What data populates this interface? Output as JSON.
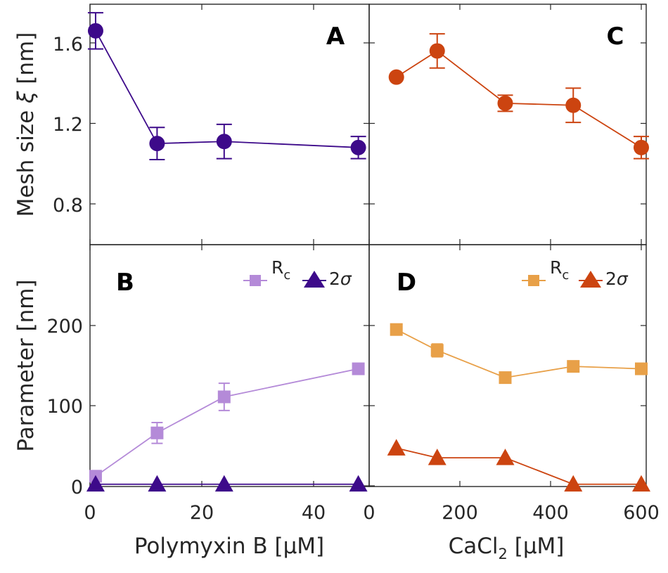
{
  "chart_data": [
    {
      "panel": "A",
      "type": "line",
      "panel_label": "A",
      "xlabel": "",
      "ylabel": "Mesh size ξ [nm]",
      "ylabel_text": "Mesh size ",
      "ylabel_symbol": "ξ",
      "ylabel_unit": " [nm]",
      "xlim": [
        0,
        50
      ],
      "ylim": [
        0.6,
        1.8
      ],
      "yticks": [
        0.8,
        1.2,
        1.6
      ],
      "ytick_labels": [
        "0.8",
        "1.2",
        "1.6"
      ],
      "series": [
        {
          "name": "Mesh size",
          "color": "#3d0a8a",
          "marker": "circle",
          "x": [
            1,
            12,
            24,
            48
          ],
          "y": [
            1.66,
            1.1,
            1.11,
            1.08
          ],
          "err": [
            0.09,
            0.08,
            0.085,
            0.055
          ]
        }
      ]
    },
    {
      "panel": "C",
      "type": "line",
      "panel_label": "C",
      "xlabel": "",
      "ylabel": "",
      "xlim": [
        0,
        610
      ],
      "ylim": [
        0.6,
        1.8
      ],
      "series": [
        {
          "name": "Mesh size",
          "color": "#cc4410",
          "marker": "circle",
          "x": [
            60,
            150,
            300,
            450,
            600
          ],
          "y": [
            1.43,
            1.56,
            1.3,
            1.29,
            1.08
          ],
          "err": [
            0,
            0.085,
            0.04,
            0.085,
            0.055
          ]
        }
      ]
    },
    {
      "panel": "B",
      "type": "line",
      "panel_label": "B",
      "xlabel": "Polymyxin B [µM]",
      "ylabel": "Parameter [nm]",
      "xlim": [
        0,
        50
      ],
      "ylim": [
        0,
        300
      ],
      "xticks": [
        0,
        20,
        40
      ],
      "xtick_labels": [
        "0",
        "20",
        "40"
      ],
      "yticks": [
        0,
        100,
        200
      ],
      "ytick_labels": [
        "0",
        "100",
        "200"
      ],
      "legend": {
        "position": "top-right",
        "entries": [
          "R",
          "2"
        ],
        "sub": "c",
        "sym": "σ"
      },
      "series": [
        {
          "name": "Rc",
          "color": "#b48ad8",
          "marker": "square",
          "x": [
            1,
            12,
            24,
            48
          ],
          "y": [
            12,
            66,
            111,
            146
          ],
          "err": [
            5,
            13,
            17,
            4
          ]
        },
        {
          "name": "2σ",
          "color": "#3d0a8a",
          "marker": "triangle",
          "x": [
            1,
            12,
            24,
            48
          ],
          "y": [
            2,
            2,
            2,
            2
          ],
          "err": [
            0,
            0,
            0,
            0
          ]
        }
      ]
    },
    {
      "panel": "D",
      "type": "line",
      "panel_label": "D",
      "xlabel": "CaCl₂ [µM]",
      "xlabel_main": "CaCl",
      "xlabel_sub": "2",
      "xlabel_unit": " [µM]",
      "ylabel": "",
      "xlim": [
        0,
        610
      ],
      "ylim": [
        0,
        300
      ],
      "xticks": [
        0,
        200,
        400,
        600
      ],
      "xtick_labels": [
        "0",
        "200",
        "400",
        "600"
      ],
      "legend": {
        "position": "top-right",
        "entries": [
          "R",
          "2"
        ],
        "sub": "c",
        "sym": "σ"
      },
      "series": [
        {
          "name": "Rc",
          "color": "#e8a048",
          "marker": "square",
          "x": [
            60,
            150,
            300,
            450,
            600
          ],
          "y": [
            195,
            169,
            135,
            149,
            146
          ],
          "err": [
            5,
            8,
            6,
            5,
            4
          ]
        },
        {
          "name": "2σ",
          "color": "#cc4410",
          "marker": "triangle",
          "x": [
            60,
            150,
            300,
            450,
            600
          ],
          "y": [
            47,
            35,
            35,
            2,
            2
          ],
          "err": [
            0,
            0,
            0,
            0,
            0
          ]
        }
      ]
    }
  ]
}
